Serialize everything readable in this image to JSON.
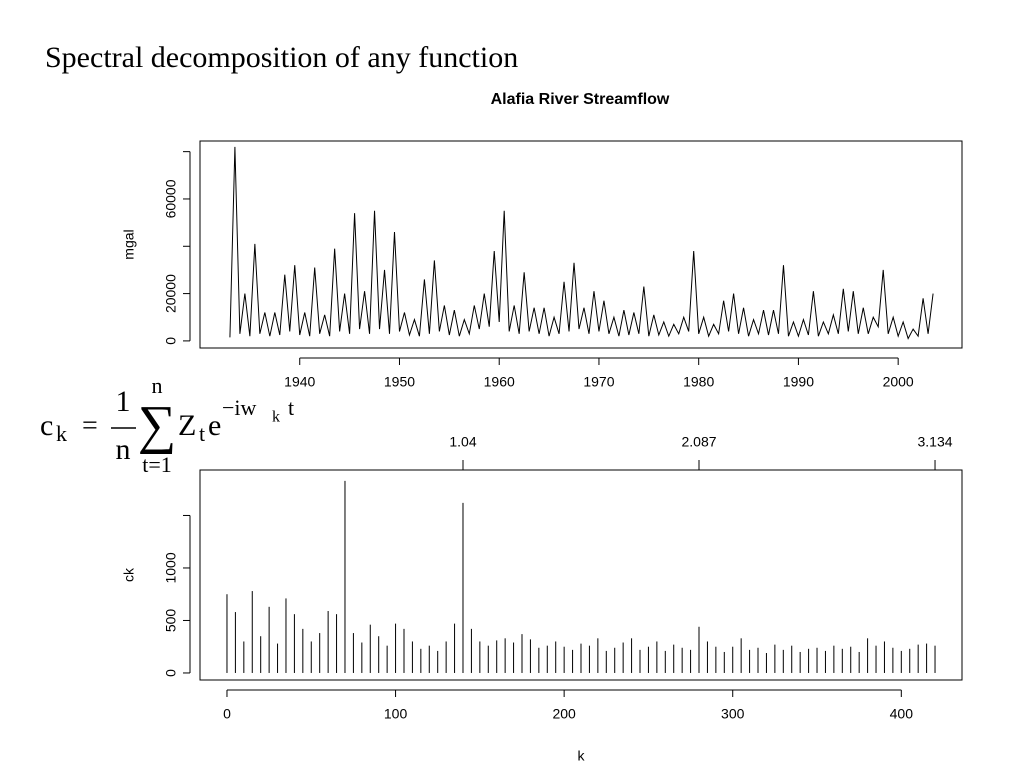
{
  "slide_title": "Spectral decomposition of any function",
  "formula": {
    "lhs": "c",
    "lhs_sub": "k",
    "equals": "=",
    "numerator": "1",
    "denominator": "n",
    "sum_symbol": "∑",
    "sum_upper": "n",
    "sum_lower": "t=1",
    "term": "Z",
    "term_sub": "t",
    "exp_base": "e",
    "exp": "−iw",
    "exp_sub": "k",
    "exp_tail": "t"
  },
  "chart_data": [
    {
      "type": "line",
      "title": "Alafia River Streamflow",
      "y_label": "mgal",
      "color": "#000000",
      "x": [
        1933,
        1933.5,
        1934,
        1934.5,
        1935,
        1935.5,
        1936,
        1936.5,
        1937,
        1937.5,
        1938,
        1938.5,
        1939,
        1939.5,
        1940,
        1940.5,
        1941,
        1941.5,
        1942,
        1942.5,
        1943,
        1943.5,
        1944,
        1944.5,
        1945,
        1945.5,
        1946,
        1946.5,
        1947,
        1947.5,
        1948,
        1948.5,
        1949,
        1949.5,
        1950,
        1950.5,
        1951,
        1951.5,
        1952,
        1952.5,
        1953,
        1953.5,
        1954,
        1954.5,
        1955,
        1955.5,
        1956,
        1956.5,
        1957,
        1957.5,
        1958,
        1958.5,
        1959,
        1959.5,
        1960,
        1960.5,
        1961,
        1961.5,
        1962,
        1962.5,
        1963,
        1963.5,
        1964,
        1964.5,
        1965,
        1965.5,
        1966,
        1966.5,
        1967,
        1967.5,
        1968,
        1968.5,
        1969,
        1969.5,
        1970,
        1970.5,
        1971,
        1971.5,
        1972,
        1972.5,
        1973,
        1973.5,
        1974,
        1974.5,
        1975,
        1975.5,
        1976,
        1976.5,
        1977,
        1977.5,
        1978,
        1978.5,
        1979,
        1979.5,
        1980,
        1980.5,
        1981,
        1981.5,
        1982,
        1982.5,
        1983,
        1983.5,
        1984,
        1984.5,
        1985,
        1985.5,
        1986,
        1986.5,
        1987,
        1987.5,
        1988,
        1988.5,
        1989,
        1989.5,
        1990,
        1990.5,
        1991,
        1991.5,
        1992,
        1992.5,
        1993,
        1993.5,
        1994,
        1994.5,
        1995,
        1995.5,
        1996,
        1996.5,
        1997,
        1997.5,
        1998,
        1998.5,
        1999,
        1999.5,
        2000,
        2000.5,
        2001,
        2001.5,
        2002,
        2002.5,
        2003,
        2003.5
      ],
      "values": [
        1500,
        82000,
        3000,
        20000,
        2000,
        41000,
        3000,
        12000,
        2000,
        12000,
        2500,
        28000,
        4000,
        32000,
        2500,
        12000,
        2000,
        31000,
        3000,
        11000,
        2000,
        39000,
        4000,
        20000,
        3000,
        54000,
        5000,
        21000,
        3000,
        55000,
        5000,
        30000,
        3000,
        46000,
        4000,
        12000,
        2500,
        9000,
        2000,
        26000,
        3000,
        34000,
        4000,
        15000,
        2500,
        13000,
        2000,
        9000,
        3000,
        15000,
        5000,
        20000,
        6000,
        38000,
        8000,
        55000,
        4000,
        15000,
        3000,
        29000,
        4000,
        14000,
        3000,
        14000,
        2000,
        10000,
        3000,
        25000,
        4000,
        33000,
        5000,
        14000,
        3000,
        21000,
        4000,
        17000,
        3000,
        10000,
        2000,
        13000,
        2500,
        12000,
        3000,
        23000,
        2000,
        11000,
        2500,
        8000,
        2000,
        7000,
        3000,
        10000,
        4000,
        38000,
        3000,
        10000,
        2000,
        7000,
        3000,
        17000,
        4000,
        20000,
        3000,
        14000,
        2000,
        9000,
        3000,
        13000,
        2500,
        13000,
        3000,
        32000,
        2000,
        8000,
        2000,
        9000,
        2500,
        21000,
        2000,
        8000,
        3000,
        11000,
        3000,
        22000,
        4000,
        21000,
        3000,
        14000,
        3000,
        10000,
        6000,
        30000,
        3000,
        10000,
        2000,
        8000,
        1000,
        5000,
        2000,
        18000,
        3000,
        20000
      ],
      "xlim": [
        1930,
        2006.4
      ],
      "xticks": [
        1940,
        1950,
        1960,
        1970,
        1980,
        1990,
        2000
      ],
      "ylim": [
        -3000,
        84500
      ],
      "yticks": [
        0,
        20000,
        {
          "value": 40000,
          "label": null
        },
        60000,
        {
          "value": 80000,
          "label": null
        }
      ]
    },
    {
      "type": "bar",
      "y_label": "ck",
      "x_label": "k",
      "color": "#000000",
      "x": [
        0,
        5,
        10,
        15,
        20,
        25,
        30,
        35,
        40,
        45,
        50,
        55,
        60,
        65,
        70,
        75,
        80,
        85,
        90,
        95,
        100,
        105,
        110,
        115,
        120,
        125,
        130,
        135,
        140,
        145,
        150,
        155,
        160,
        165,
        170,
        175,
        180,
        185,
        190,
        195,
        200,
        205,
        210,
        215,
        220,
        225,
        230,
        235,
        240,
        245,
        250,
        255,
        260,
        265,
        270,
        275,
        280,
        285,
        290,
        295,
        300,
        305,
        310,
        315,
        320,
        325,
        330,
        335,
        340,
        345,
        350,
        355,
        360,
        365,
        370,
        375,
        380,
        385,
        390,
        395,
        400,
        405,
        410,
        415,
        420
      ],
      "values": [
        750,
        580,
        300,
        780,
        350,
        630,
        280,
        710,
        560,
        420,
        300,
        380,
        590,
        560,
        1830,
        380,
        290,
        460,
        350,
        260,
        470,
        420,
        300,
        230,
        260,
        210,
        300,
        470,
        1620,
        420,
        300,
        260,
        310,
        330,
        290,
        370,
        320,
        240,
        260,
        300,
        250,
        220,
        280,
        260,
        330,
        210,
        240,
        290,
        330,
        220,
        250,
        300,
        210,
        270,
        240,
        220,
        440,
        300,
        250,
        200,
        250,
        330,
        220,
        240,
        190,
        270,
        220,
        260,
        200,
        230,
        240,
        210,
        260,
        230,
        250,
        200,
        330,
        260,
        300,
        240,
        210,
        230,
        270,
        280,
        260
      ],
      "xlim": [
        -16,
        436
      ],
      "xticks": [
        0,
        100,
        200,
        300,
        400
      ],
      "ylim": [
        -67,
        1933
      ],
      "yticks": [
        0,
        500,
        1000,
        {
          "value": 1500,
          "label": null
        }
      ],
      "x2ticks": [
        {
          "value": 140,
          "label": "1.04"
        },
        {
          "value": 280,
          "label": "2.087"
        },
        {
          "value": 420,
          "label": "3.134"
        }
      ]
    }
  ]
}
